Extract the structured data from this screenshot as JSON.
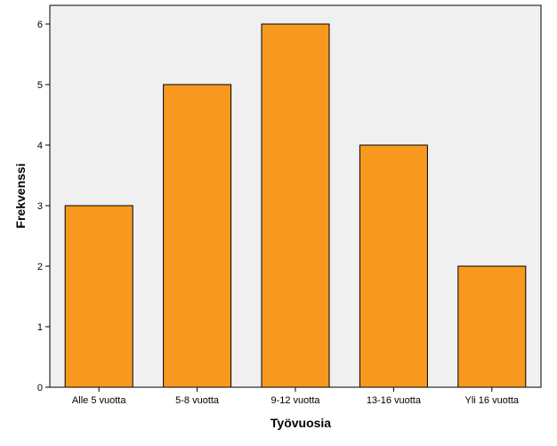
{
  "chart_data": {
    "type": "bar",
    "categories": [
      "Alle 5 vuotta",
      "5-8 vuotta",
      "9-12 vuotta",
      "13-16 vuotta",
      "Yli 16 vuotta"
    ],
    "values": [
      3,
      5,
      6,
      4,
      2
    ],
    "xlabel": "Työvuosia",
    "ylabel": "Frekvenssi",
    "ylim": [
      0,
      6
    ],
    "yticks": [
      0,
      1,
      2,
      3,
      4,
      5,
      6
    ],
    "grid": false,
    "legend": "none",
    "colors": {
      "bar_fill": "#F7991E",
      "bar_stroke": "#000000",
      "plot_background": "#F0F0F0",
      "page_background": "#FFFFFF"
    }
  }
}
